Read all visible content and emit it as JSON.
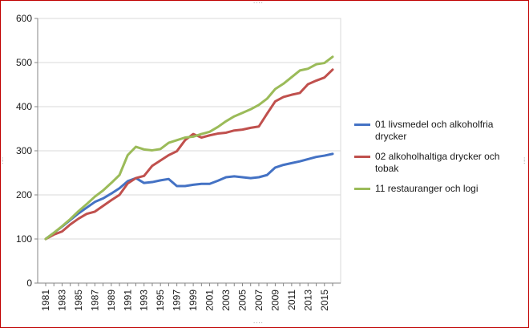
{
  "chart_data": {
    "type": "line",
    "title": "",
    "xlabel": "",
    "ylabel": "",
    "ylim": [
      0,
      600
    ],
    "yticks": [
      0,
      100,
      200,
      300,
      400,
      500,
      600
    ],
    "grid": true,
    "legend_position": "right",
    "x": [
      "1981",
      "1982",
      "1983",
      "1984",
      "1985",
      "1986",
      "1987",
      "1988",
      "1989",
      "1990",
      "1991",
      "1992",
      "1993",
      "1994",
      "1995",
      "1996",
      "1997",
      "1998",
      "1999",
      "2000",
      "2001",
      "2002",
      "2003",
      "2004",
      "2005",
      "2006",
      "2007",
      "2008",
      "2009",
      "2010",
      "2011",
      "2012",
      "2013",
      "2014",
      "2015",
      "2016"
    ],
    "xtick_labels": [
      "1981",
      "1983",
      "1985",
      "1987",
      "1989",
      "1991",
      "1993",
      "1995",
      "1997",
      "1999",
      "2001",
      "2003",
      "2005",
      "2007",
      "2009",
      "2011",
      "2013",
      "2015"
    ],
    "series": [
      {
        "name": "01 livsmedel och alkoholfria drycker",
        "color": "#4472c4",
        "values": [
          100,
          114,
          128,
          143,
          158,
          171,
          184,
          192,
          203,
          215,
          231,
          238,
          227,
          229,
          233,
          236,
          220,
          220,
          223,
          225,
          225,
          232,
          240,
          242,
          240,
          238,
          240,
          245,
          262,
          268,
          272,
          276,
          281,
          286,
          289,
          293
        ]
      },
      {
        "name": "02 alkoholhaltiga drycker och tobak",
        "color": "#c0504d",
        "values": [
          100,
          110,
          117,
          133,
          146,
          157,
          162,
          175,
          188,
          200,
          226,
          238,
          243,
          266,
          278,
          290,
          299,
          324,
          338,
          330,
          335,
          339,
          341,
          346,
          348,
          352,
          355,
          384,
          412,
          422,
          427,
          431,
          451,
          459,
          466,
          484
        ]
      },
      {
        "name": "11 restauranger och logi",
        "color": "#9bbb59",
        "values": [
          100,
          114,
          129,
          145,
          163,
          179,
          196,
          210,
          227,
          245,
          290,
          309,
          303,
          301,
          304,
          318,
          324,
          330,
          332,
          338,
          343,
          354,
          367,
          378,
          386,
          394,
          404,
          418,
          440,
          452,
          467,
          482,
          486,
          496,
          499,
          513
        ]
      }
    ]
  }
}
